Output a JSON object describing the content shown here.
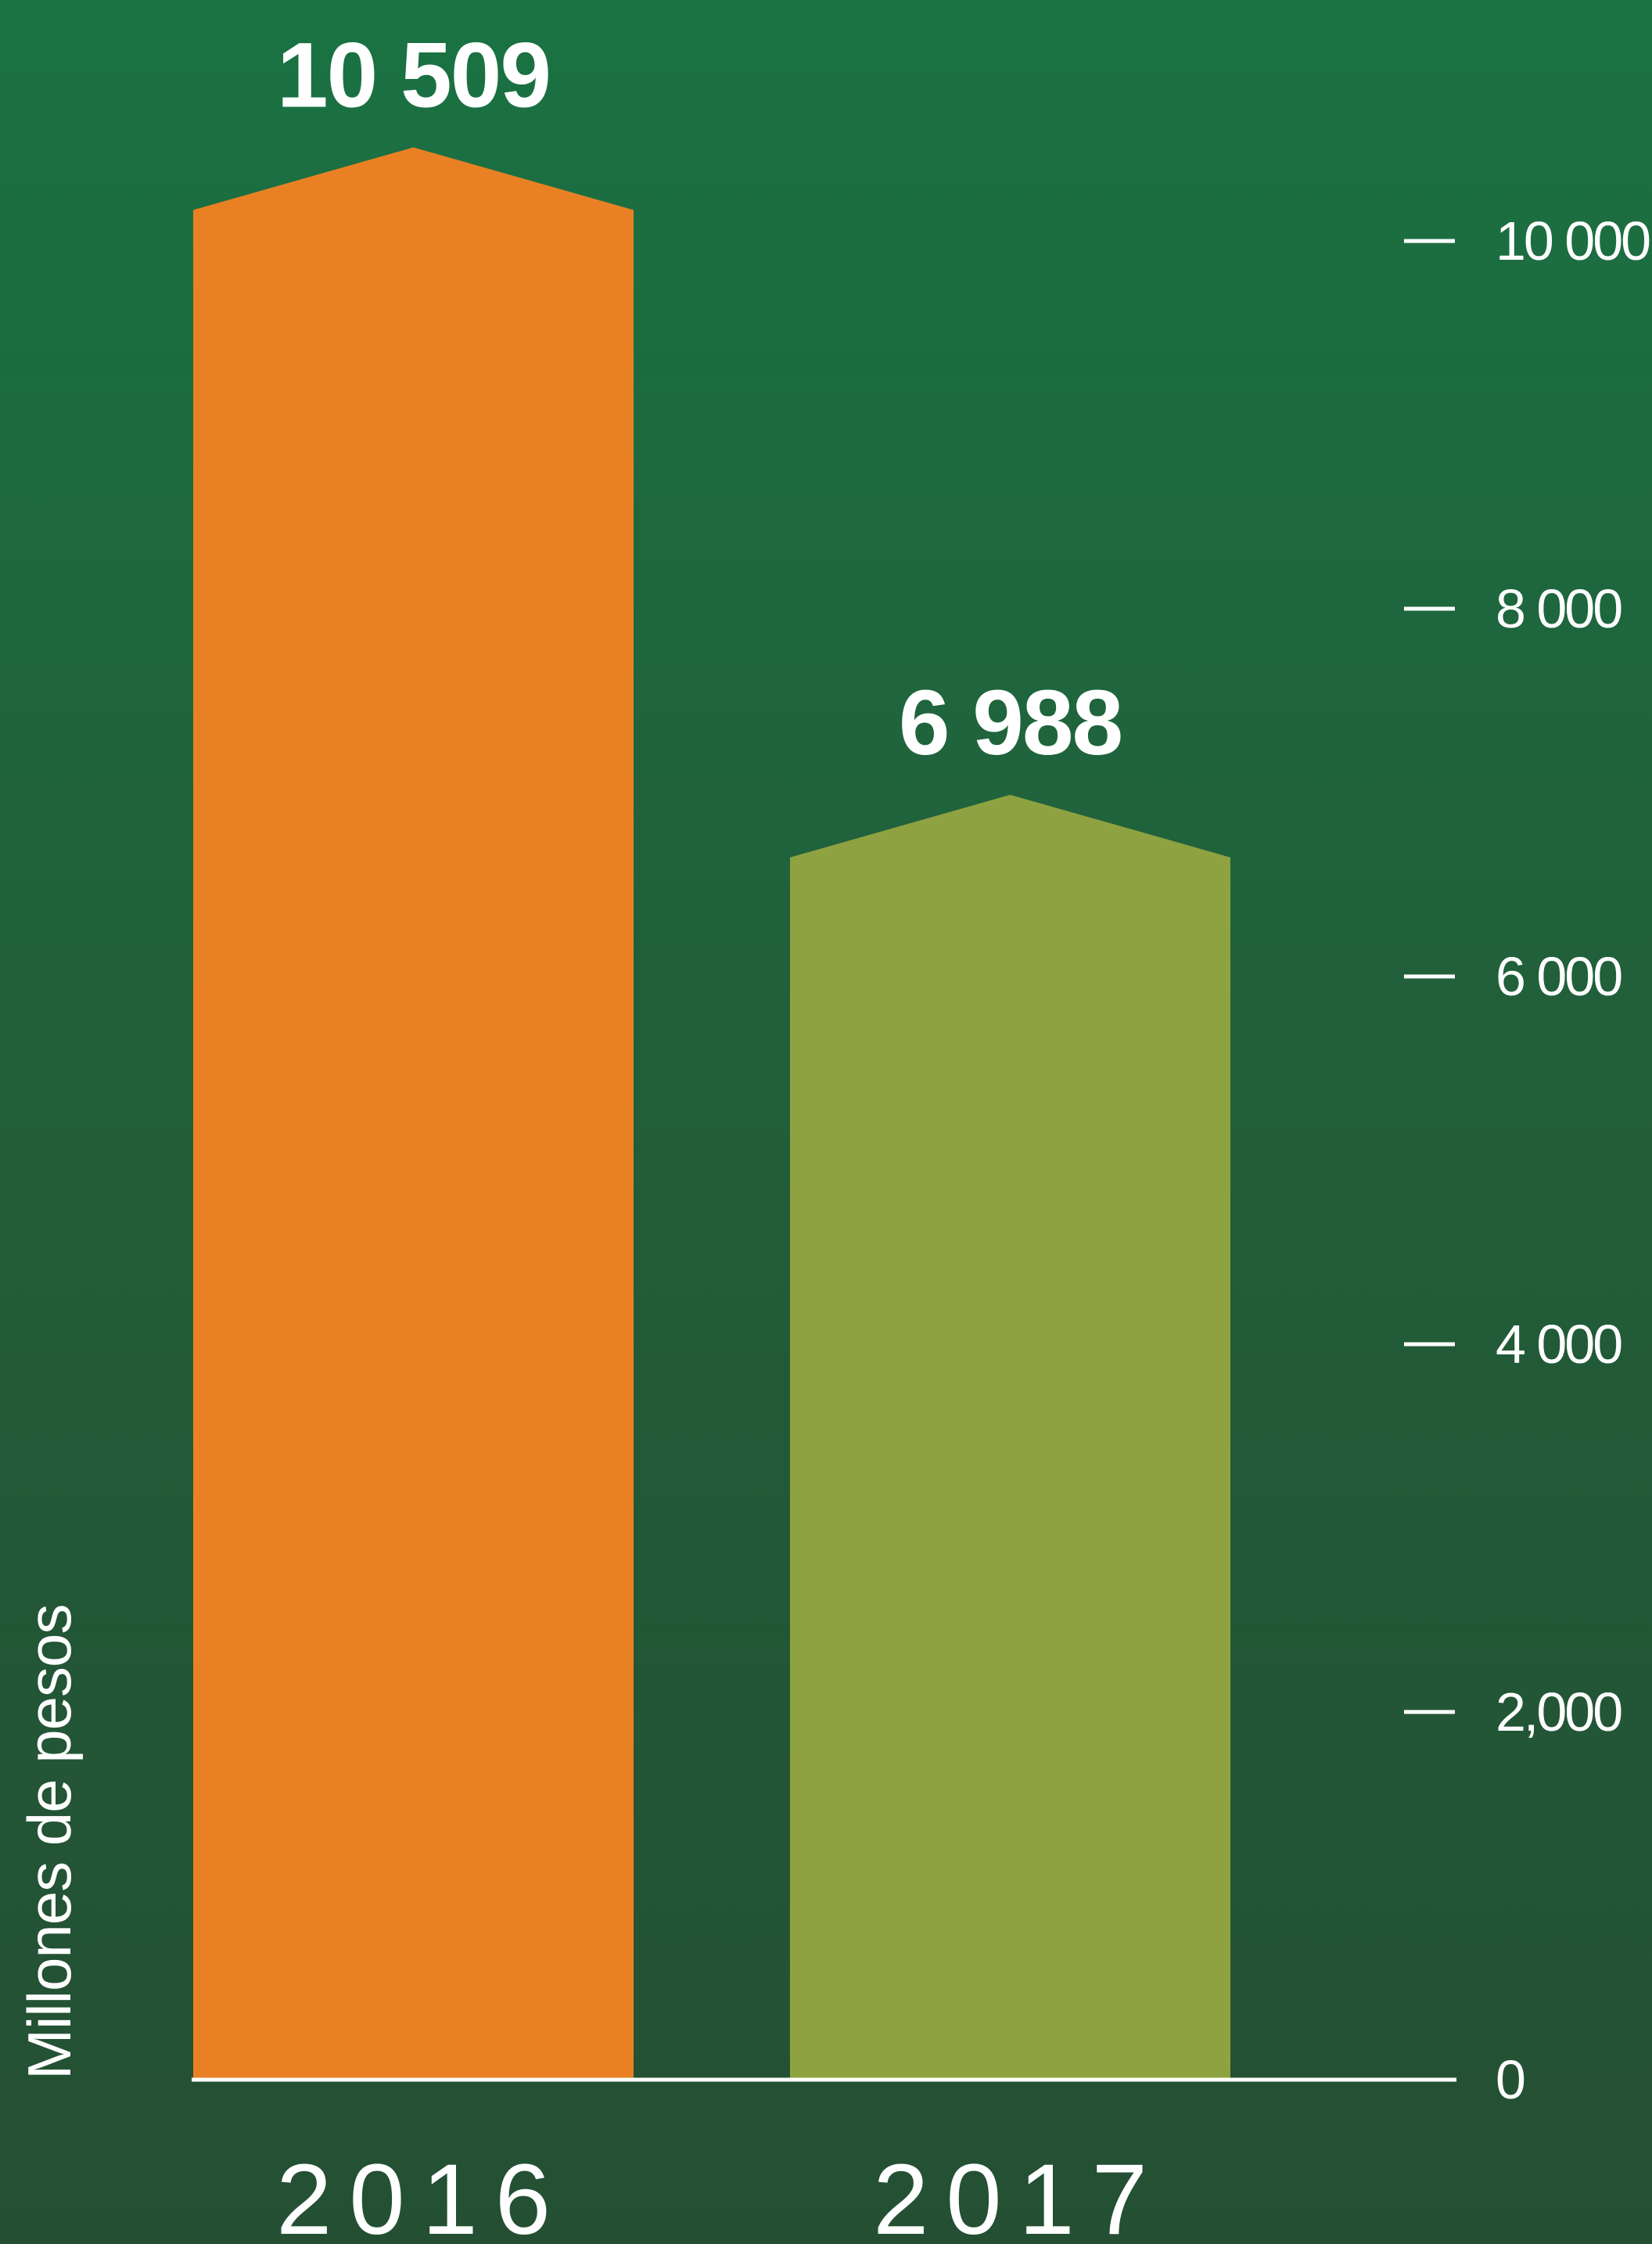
{
  "chart_data": {
    "type": "bar",
    "categories": [
      "2016",
      "2017"
    ],
    "values": [
      10509,
      6988
    ],
    "value_labels": [
      "10 509",
      "6 988"
    ],
    "colors": [
      "#e98124",
      "#8fa241"
    ],
    "ylabel": "Millones de pesos",
    "ylim": [
      0,
      10000
    ],
    "y_ticks": [
      {
        "value": 0,
        "label": "0"
      },
      {
        "value": 2000,
        "label": "2,000"
      },
      {
        "value": 4000,
        "label": "4 000"
      },
      {
        "value": 6000,
        "label": "6 000"
      },
      {
        "value": 8000,
        "label": "8 000"
      },
      {
        "value": 10000,
        "label": "10 000"
      }
    ],
    "grid": false,
    "legend": "none",
    "axis_position": "right"
  }
}
